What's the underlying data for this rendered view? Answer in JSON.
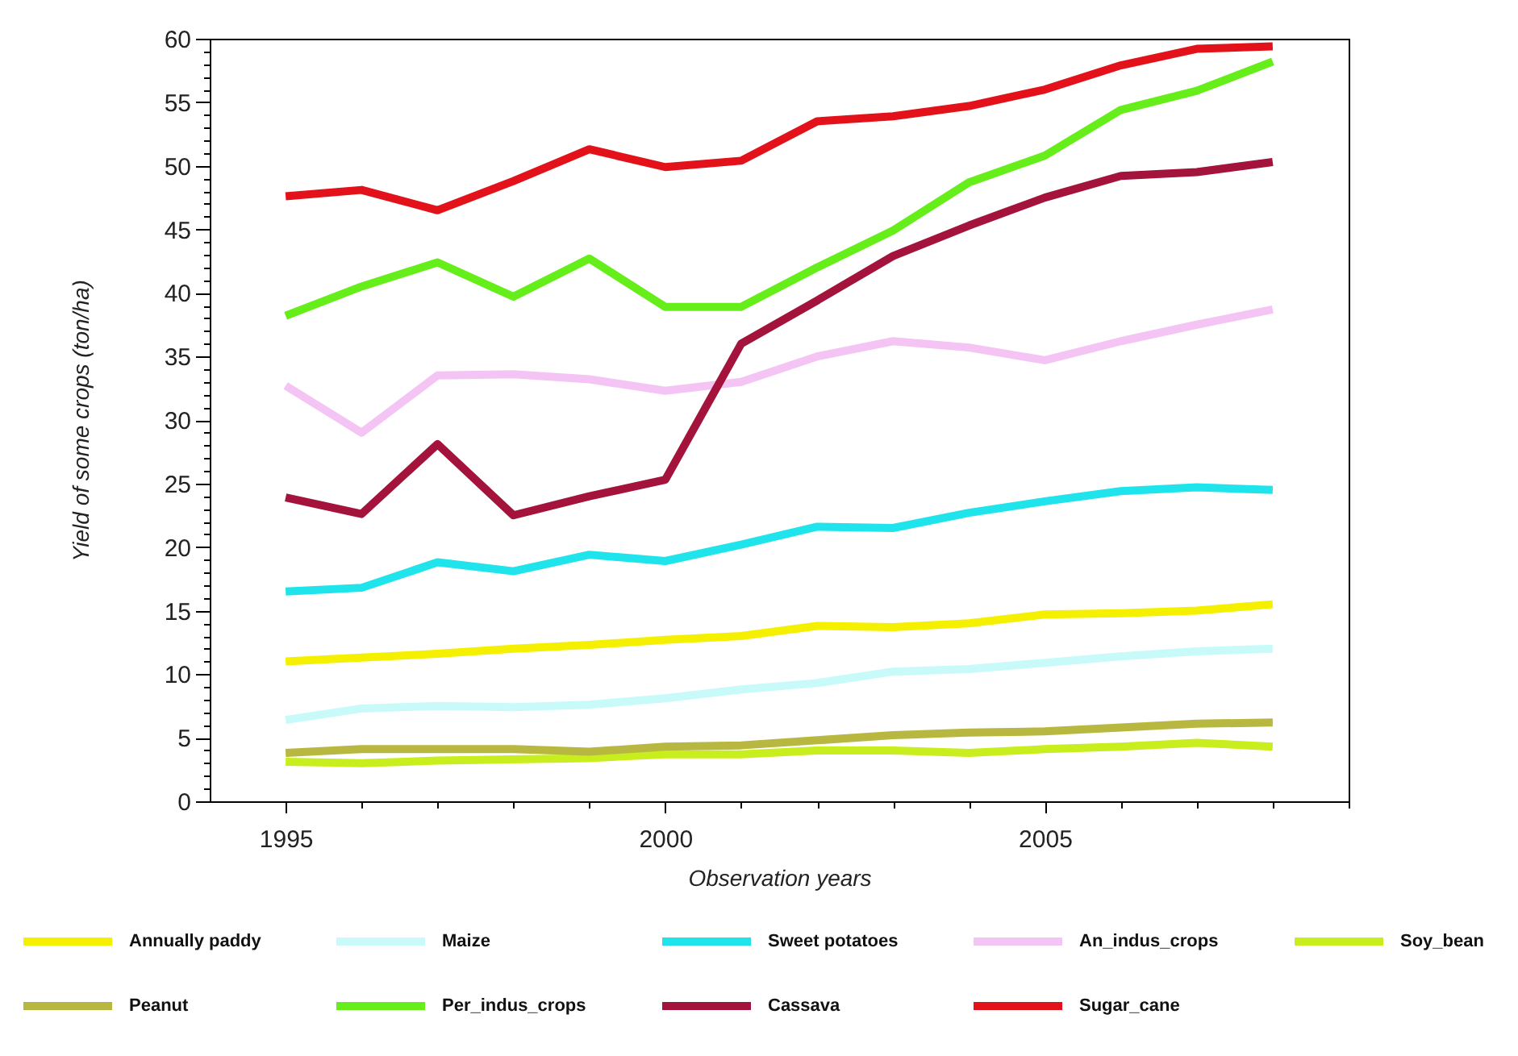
{
  "chart_data": {
    "type": "line",
    "xlabel": "Observation years",
    "ylabel": "Yield of some crops (ton/ha)",
    "x": [
      1995,
      1996,
      1997,
      1998,
      1999,
      2000,
      2001,
      2002,
      2003,
      2004,
      2005,
      2006,
      2007,
      2008
    ],
    "series": [
      {
        "name": "Annually paddy",
        "color": "#f5f000",
        "values": [
          11.0,
          11.3,
          11.6,
          12.0,
          12.3,
          12.7,
          13.0,
          13.8,
          13.7,
          14.0,
          14.7,
          14.8,
          15.0,
          15.5
        ]
      },
      {
        "name": "Maize",
        "color": "#c8fafa",
        "values": [
          6.4,
          7.3,
          7.5,
          7.4,
          7.6,
          8.1,
          8.8,
          9.3,
          10.2,
          10.4,
          10.9,
          11.4,
          11.8,
          12.0
        ]
      },
      {
        "name": "Sweet potatoes",
        "color": "#20e4ec",
        "values": [
          16.5,
          16.8,
          18.8,
          18.1,
          19.4,
          18.9,
          20.2,
          21.6,
          21.5,
          22.7,
          23.6,
          24.4,
          24.7,
          24.5
        ]
      },
      {
        "name": "An_indus_crops",
        "color": "#f4c4f4",
        "values": [
          32.7,
          29.0,
          33.5,
          33.6,
          33.2,
          32.3,
          33.0,
          35.0,
          36.2,
          35.7,
          34.7,
          36.2,
          37.5,
          38.7
        ]
      },
      {
        "name": "Soy_bean",
        "color": "#c8ee1e",
        "values": [
          3.1,
          3.0,
          3.2,
          3.3,
          3.4,
          3.7,
          3.7,
          4.0,
          4.0,
          3.8,
          4.1,
          4.3,
          4.6,
          4.3
        ]
      },
      {
        "name": "Peanut",
        "color": "#b8b840",
        "values": [
          3.8,
          4.1,
          4.1,
          4.1,
          3.9,
          4.3,
          4.4,
          4.8,
          5.2,
          5.4,
          5.5,
          5.8,
          6.1,
          6.2
        ]
      },
      {
        "name": "Per_indus_crops",
        "color": "#66ee1a",
        "values": [
          38.2,
          40.5,
          42.4,
          39.7,
          42.7,
          38.9,
          38.9,
          42.0,
          44.9,
          48.7,
          50.8,
          54.4,
          55.9,
          58.2
        ]
      },
      {
        "name": "Cassava",
        "color": "#a3133c",
        "values": [
          23.9,
          22.6,
          28.1,
          22.5,
          24.0,
          25.3,
          36.0,
          39.4,
          42.9,
          45.3,
          47.5,
          49.2,
          49.5,
          50.3
        ]
      },
      {
        "name": "Sugar_cane",
        "color": "#e3121a",
        "values": [
          47.6,
          48.1,
          46.5,
          48.8,
          51.3,
          49.9,
          50.4,
          53.5,
          53.9,
          54.7,
          56.0,
          57.9,
          59.2,
          59.4
        ]
      }
    ],
    "xlim": [
      1994,
      2009
    ],
    "xticks": [
      1995,
      {
        "value": 1996,
        "label": null
      },
      {
        "value": 1997,
        "label": null
      },
      {
        "value": 1998,
        "label": null
      },
      {
        "value": 1999,
        "label": null
      },
      2000,
      {
        "value": 2001,
        "label": null
      },
      {
        "value": 2002,
        "label": null
      },
      {
        "value": 2003,
        "label": null
      },
      {
        "value": 2004,
        "label": null
      },
      2005,
      {
        "value": 2006,
        "label": null
      },
      {
        "value": 2007,
        "label": null
      },
      {
        "value": 2008,
        "label": null
      },
      {
        "value": 2009,
        "label": null
      }
    ],
    "ylim": [
      0,
      60
    ],
    "yticks": [
      0,
      {
        "value": 1,
        "label": null
      },
      {
        "value": 2,
        "label": null
      },
      {
        "value": 3,
        "label": null
      },
      {
        "value": 4,
        "label": null
      },
      5,
      {
        "value": 6,
        "label": null
      },
      {
        "value": 7,
        "label": null
      },
      {
        "value": 8,
        "label": null
      },
      {
        "value": 9,
        "label": null
      },
      10,
      {
        "value": 11,
        "label": null
      },
      {
        "value": 12,
        "label": null
      },
      {
        "value": 13,
        "label": null
      },
      {
        "value": 14,
        "label": null
      },
      15,
      {
        "value": 16,
        "label": null
      },
      {
        "value": 17,
        "label": null
      },
      {
        "value": 18,
        "label": null
      },
      {
        "value": 19,
        "label": null
      },
      20,
      {
        "value": 21,
        "label": null
      },
      {
        "value": 22,
        "label": null
      },
      {
        "value": 23,
        "label": null
      },
      {
        "value": 24,
        "label": null
      },
      25,
      {
        "value": 26,
        "label": null
      },
      {
        "value": 27,
        "label": null
      },
      {
        "value": 28,
        "label": null
      },
      {
        "value": 29,
        "label": null
      },
      30,
      {
        "value": 31,
        "label": null
      },
      {
        "value": 32,
        "label": null
      },
      {
        "value": 33,
        "label": null
      },
      {
        "value": 34,
        "label": null
      },
      35,
      {
        "value": 36,
        "label": null
      },
      {
        "value": 37,
        "label": null
      },
      {
        "value": 38,
        "label": null
      },
      {
        "value": 39,
        "label": null
      },
      40,
      {
        "value": 41,
        "label": null
      },
      {
        "value": 42,
        "label": null
      },
      {
        "value": 43,
        "label": null
      },
      {
        "value": 44,
        "label": null
      },
      45,
      {
        "value": 46,
        "label": null
      },
      {
        "value": 47,
        "label": null
      },
      {
        "value": 48,
        "label": null
      },
      {
        "value": 49,
        "label": null
      },
      50,
      {
        "value": 51,
        "label": null
      },
      {
        "value": 52,
        "label": null
      },
      {
        "value": 53,
        "label": null
      },
      {
        "value": 54,
        "label": null
      },
      55,
      {
        "value": 56,
        "label": null
      },
      {
        "value": 57,
        "label": null
      },
      {
        "value": 58,
        "label": null
      },
      {
        "value": 59,
        "label": null
      },
      60
    ],
    "grid": false,
    "legend": "bottom",
    "line_style": "solid"
  }
}
